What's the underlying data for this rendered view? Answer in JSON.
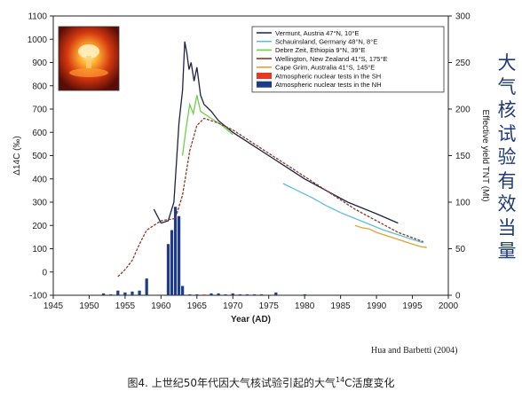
{
  "chart_data": {
    "type": "line",
    "title": "",
    "xlabel": "Year (AD)",
    "ylabel": "Δ14C (‰)",
    "y2label": "Effective yield TNT (Mt)",
    "xlim": [
      1945,
      2000
    ],
    "ylim": [
      -100,
      1100
    ],
    "y2lim": [
      0,
      300
    ],
    "xticks": [
      1945,
      1950,
      1955,
      1960,
      1965,
      1970,
      1975,
      1980,
      1985,
      1990,
      1995,
      2000
    ],
    "yticks": [
      -100,
      0,
      100,
      200,
      300,
      400,
      500,
      600,
      700,
      800,
      900,
      1000,
      1100
    ],
    "y2ticks": [
      0,
      50,
      100,
      150,
      200,
      250,
      300
    ],
    "grid": false,
    "legend_position": "top-right",
    "series": [
      {
        "name": "Vermunt, Austria 47°N, 10°E",
        "color": "#1c2442",
        "x": [
          1959.0,
          1960.0,
          1961.0,
          1961.8,
          1962.5,
          1963.0,
          1963.3,
          1963.6,
          1963.9,
          1964.2,
          1964.6,
          1965.0,
          1965.5,
          1966.0,
          1967.0,
          1968.0,
          1970.0,
          1972.0,
          1975.0,
          1978.0,
          1980.0,
          1983.0,
          1986.0,
          1990.0,
          1993.0
        ],
        "y": [
          270,
          210,
          220,
          300,
          640,
          780,
          990,
          940,
          870,
          900,
          820,
          880,
          760,
          720,
          690,
          650,
          600,
          560,
          500,
          440,
          400,
          350,
          300,
          250,
          210
        ]
      },
      {
        "name": "Schauinsland, Germany 48°N, 8°E",
        "color": "#5fbfd6",
        "x": [
          1977.0,
          1979.0,
          1981.0,
          1983.0,
          1985.0,
          1987.0,
          1989.0,
          1991.0,
          1993.0,
          1995.0,
          1996.5
        ],
        "y": [
          380,
          350,
          320,
          285,
          255,
          230,
          205,
          180,
          160,
          140,
          125
        ]
      },
      {
        "name": "Debre Zeit, Ethiopia 9°N, 39°E",
        "color": "#6fcf4a",
        "x": [
          1963.0,
          1963.5,
          1964.0,
          1964.5,
          1965.0,
          1965.5,
          1966.0,
          1967.0,
          1968.5,
          1970.0
        ],
        "y": [
          500,
          620,
          720,
          680,
          760,
          690,
          680,
          660,
          630,
          590
        ]
      },
      {
        "name": "Wellington, New Zealand 41°S, 175°E",
        "color": "#8a3a2a",
        "x": [
          1954.0,
          1955.0,
          1956.0,
          1957.0,
          1958.0,
          1959.0,
          1960.0,
          1961.0,
          1962.0,
          1963.0,
          1964.0,
          1965.0,
          1966.0,
          1967.0,
          1968.0,
          1970.0,
          1972.0,
          1975.0,
          1978.0,
          1981.0,
          1984.0,
          1987.0,
          1990.0,
          1993.0,
          1996.5
        ],
        "y": [
          -20,
          10,
          50,
          120,
          180,
          200,
          220,
          225,
          230,
          330,
          520,
          630,
          660,
          650,
          640,
          610,
          570,
          510,
          450,
          390,
          330,
          270,
          220,
          170,
          130
        ]
      },
      {
        "name": "Cape Grim, Australia 41°S, 145°E",
        "color": "#e8a030",
        "x": [
          1987.0,
          1988.0,
          1989.0,
          1990.0,
          1991.0,
          1992.0,
          1993.0,
          1994.0,
          1995.0,
          1996.0,
          1997.0
        ],
        "y": [
          200,
          190,
          185,
          170,
          160,
          150,
          140,
          130,
          120,
          110,
          105
        ]
      }
    ],
    "bar_series": [
      {
        "name": "Atmospheric nuclear tests in the SH",
        "color": "#e8391e",
        "x": [
          1966.0,
          1967.0,
          1968.0,
          1970.0,
          1971.0,
          1972.0,
          1973.0,
          1974.0
        ],
        "y2": [
          1,
          1,
          1,
          1,
          1,
          1,
          1,
          1
        ]
      },
      {
        "name": "Atmospheric nuclear tests in the NH",
        "color": "#1d3b8a",
        "x": [
          1952.0,
          1953.0,
          1954.0,
          1955.0,
          1956.0,
          1957.0,
          1958.0,
          1961.0,
          1961.5,
          1962.0,
          1962.5,
          1963.0,
          1964.0,
          1965.0,
          1967.0,
          1968.0,
          1969.0,
          1970.0,
          1971.0,
          1972.0,
          1973.0,
          1974.0,
          1976.0,
          1980.0
        ],
        "y2": [
          2,
          1,
          5,
          3,
          4,
          5,
          18,
          55,
          70,
          95,
          85,
          10,
          1,
          1,
          2,
          2,
          1,
          2,
          1,
          1,
          1,
          1,
          3,
          1
        ]
      }
    ],
    "image_inset": "nuclear-explosion-photo"
  },
  "vertical_title": "大气核试验有效当量",
  "citation": "Hua and Barbetti (2004)",
  "caption": {
    "prefix": "图4.  上世纪50年代因大气核试验引起的大气",
    "superscript": "14",
    "suffix": "C活度变化"
  }
}
